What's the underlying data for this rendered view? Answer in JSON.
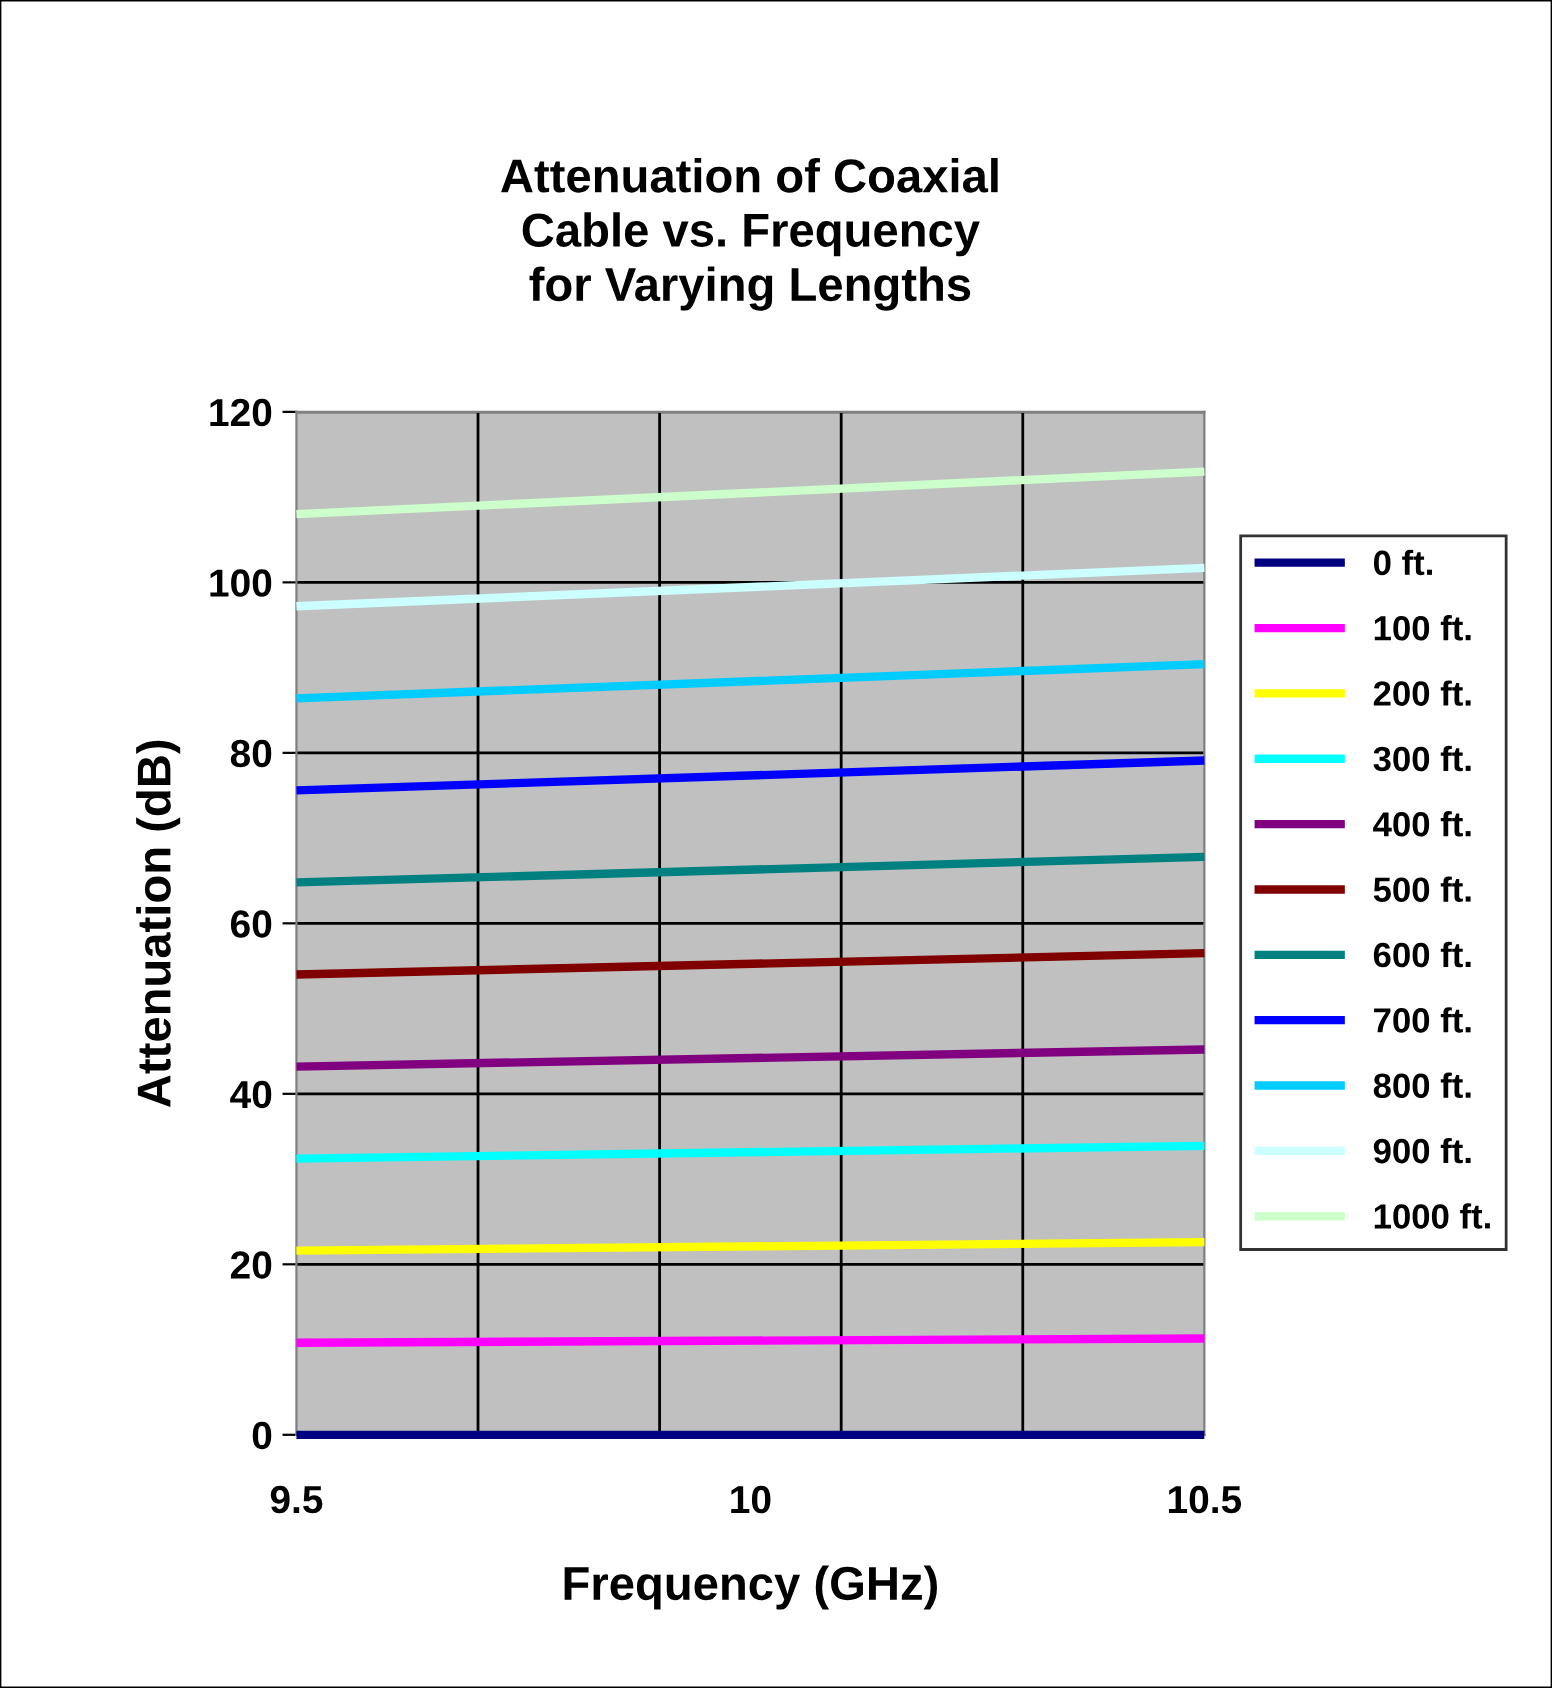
{
  "chart_data": {
    "type": "line",
    "title": "Attenuation of Coaxial\nCable vs. Frequency\nfor Varying Lengths",
    "xlabel": "Frequency (GHz)",
    "ylabel": "Attenuation (dB)",
    "x": [
      9.5,
      10.5
    ],
    "xlim": [
      9.5,
      10.5
    ],
    "xticks": [
      9.5,
      {
        "value": 9.7,
        "label": null
      },
      {
        "value": 9.9,
        "label": null
      },
      10,
      {
        "value": 10.1,
        "label": null
      },
      {
        "value": 10.3,
        "label": null
      },
      10.5
    ],
    "ylim": [
      0,
      120
    ],
    "yticks": [
      0,
      20,
      40,
      60,
      80,
      100,
      120
    ],
    "grid": true,
    "legend": "right",
    "marker": "none",
    "line_style": "solid",
    "series": [
      {
        "name": "0 ft.",
        "color": "#000080",
        "values": [
          0,
          0
        ]
      },
      {
        "name": "100 ft.",
        "color": "#ff00ff",
        "values": [
          10.8,
          11.3
        ]
      },
      {
        "name": "200 ft.",
        "color": "#ffff00",
        "values": [
          21.6,
          22.6
        ]
      },
      {
        "name": "300 ft.",
        "color": "#00ffff",
        "values": [
          32.4,
          33.9
        ]
      },
      {
        "name": "400 ft.",
        "color": "#800080",
        "values": [
          43.2,
          45.2
        ]
      },
      {
        "name": "500 ft.",
        "color": "#800000",
        "values": [
          54.0,
          56.5
        ]
      },
      {
        "name": "600 ft.",
        "color": "#008080",
        "values": [
          64.8,
          67.8
        ]
      },
      {
        "name": "700 ft.",
        "color": "#0000ff",
        "values": [
          75.6,
          79.1
        ]
      },
      {
        "name": "800 ft.",
        "color": "#00ccff",
        "values": [
          86.4,
          90.4
        ]
      },
      {
        "name": "900 ft.",
        "color": "#ccffff",
        "values": [
          97.2,
          101.7
        ]
      },
      {
        "name": "1000 ft.",
        "color": "#ccffcc",
        "values": [
          108.0,
          113.0
        ]
      }
    ]
  }
}
